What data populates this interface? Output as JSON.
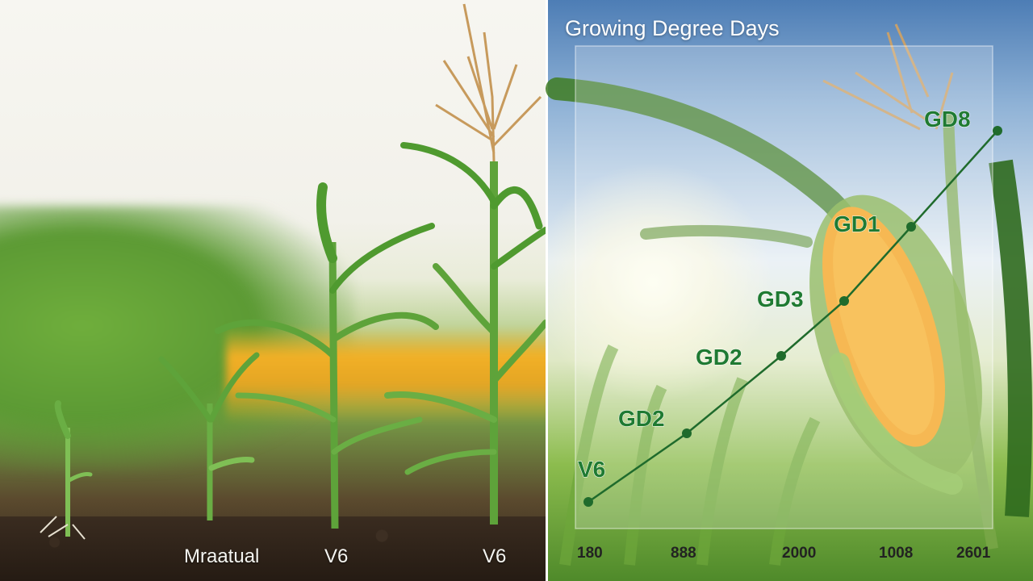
{
  "left_panel": {
    "stage_labels": [
      "Mraatual",
      "V6",
      "V6"
    ]
  },
  "colors": {
    "line": "#1f6b2c",
    "marker": "#1f6b2c",
    "label_text": "#1f7a32",
    "tick_text": "#222222",
    "corn_kernel": "#f4a523",
    "leaf": "#4f9a2f"
  },
  "chart_data": {
    "type": "line",
    "title": "Growing Degree Days",
    "x_tick_labels": [
      "180",
      "888",
      "2000",
      "1008",
      "2601"
    ],
    "points": [
      {
        "x": 0,
        "y": 0,
        "label": "V6"
      },
      {
        "x": 1,
        "y": 1,
        "label": "GD2"
      },
      {
        "x": 2,
        "y": 2,
        "label": "GD2"
      },
      {
        "x": 3,
        "y": 3,
        "label": "GD3"
      },
      {
        "x": 4,
        "y": 4,
        "label": "GD1"
      },
      {
        "x": 5,
        "y": 5,
        "label": "GD8"
      }
    ],
    "grid": false,
    "legend": "none"
  }
}
